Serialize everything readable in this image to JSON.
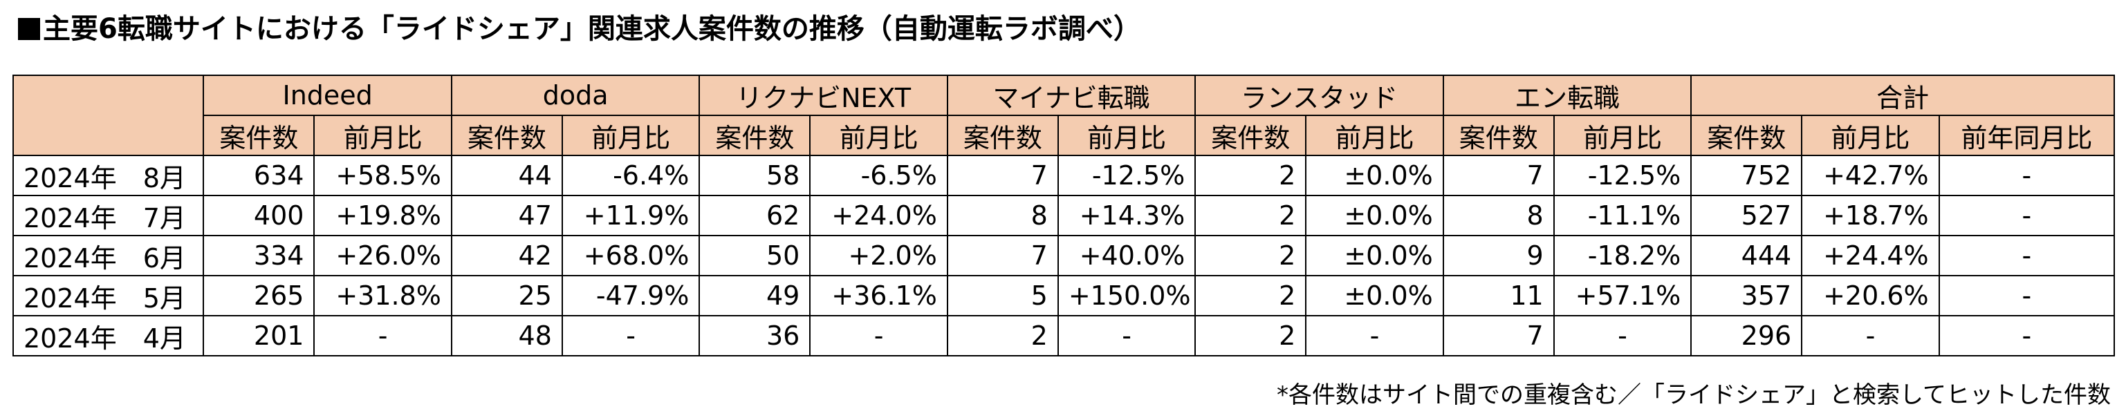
{
  "title": "主要6転職サイトにおける「ライドシェア」関連求人案件数の推移（自動運転ラボ調べ）",
  "groups": [
    "Indeed",
    "doda",
    "リクナビNEXT",
    "マイナビ転職",
    "ランスタッド",
    "エン転職",
    "合計"
  ],
  "sub": {
    "count": "案件数",
    "mom": "前月比",
    "yoy": "前年同月比"
  },
  "rows": [
    {
      "period": "2024年　8月",
      "cells": [
        "634",
        "+58.5%",
        "44",
        "-6.4%",
        "58",
        "-6.5%",
        "7",
        "-12.5%",
        "2",
        "±0.0%",
        "7",
        "-12.5%",
        "752",
        "+42.7%",
        "-"
      ]
    },
    {
      "period": "2024年　7月",
      "cells": [
        "400",
        "+19.8%",
        "47",
        "+11.9%",
        "62",
        "+24.0%",
        "8",
        "+14.3%",
        "2",
        "±0.0%",
        "8",
        "-11.1%",
        "527",
        "+18.7%",
        "-"
      ]
    },
    {
      "period": "2024年　6月",
      "cells": [
        "334",
        "+26.0%",
        "42",
        "+68.0%",
        "50",
        "+2.0%",
        "7",
        "+40.0%",
        "2",
        "±0.0%",
        "9",
        "-18.2%",
        "444",
        "+24.4%",
        "-"
      ]
    },
    {
      "period": "2024年　5月",
      "cells": [
        "265",
        "+31.8%",
        "25",
        "-47.9%",
        "49",
        "+36.1%",
        "5",
        "+150.0%",
        "2",
        "±0.0%",
        "11",
        "+57.1%",
        "357",
        "+20.6%",
        "-"
      ]
    },
    {
      "period": "2024年　4月",
      "cells": [
        "201",
        "-",
        "48",
        "-",
        "36",
        "-",
        "2",
        "-",
        "2",
        "-",
        "7",
        "-",
        "296",
        "-",
        "-"
      ]
    }
  ],
  "footnote": "*各件数はサイト間での重複含む／「ライドシェア」と検索してヒットした件数"
}
